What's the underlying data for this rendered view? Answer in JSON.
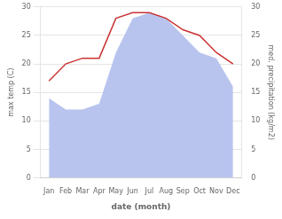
{
  "chart_data": {
    "type": "line",
    "categories": [
      "Jan",
      "Feb",
      "Mar",
      "Apr",
      "May",
      "Jun",
      "Jul",
      "Aug",
      "Sep",
      "Oct",
      "Nov",
      "Dec"
    ],
    "series": [
      {
        "type": "area",
        "color": "#b8c4ee",
        "axis": "y2",
        "values": [
          14,
          12,
          12,
          13,
          22,
          28,
          29,
          28,
          25,
          22,
          21,
          16
        ]
      },
      {
        "type": "line",
        "color": "#cc3333",
        "values": [
          17,
          20,
          21,
          21,
          28,
          29,
          29,
          28,
          26,
          25,
          22,
          20
        ]
      }
    ],
    "xlabel": "date (month)",
    "ylabel": "max temp (C)",
    "y2label": "med. precipitation (kg/m2)",
    "ylim": [
      0,
      30
    ],
    "yticks": [
      0,
      5,
      10,
      15,
      20,
      25,
      30
    ],
    "y2lim": [
      0,
      30
    ],
    "y2ticks": [
      0,
      5,
      10,
      15,
      20,
      25,
      30
    ],
    "grid": true
  }
}
